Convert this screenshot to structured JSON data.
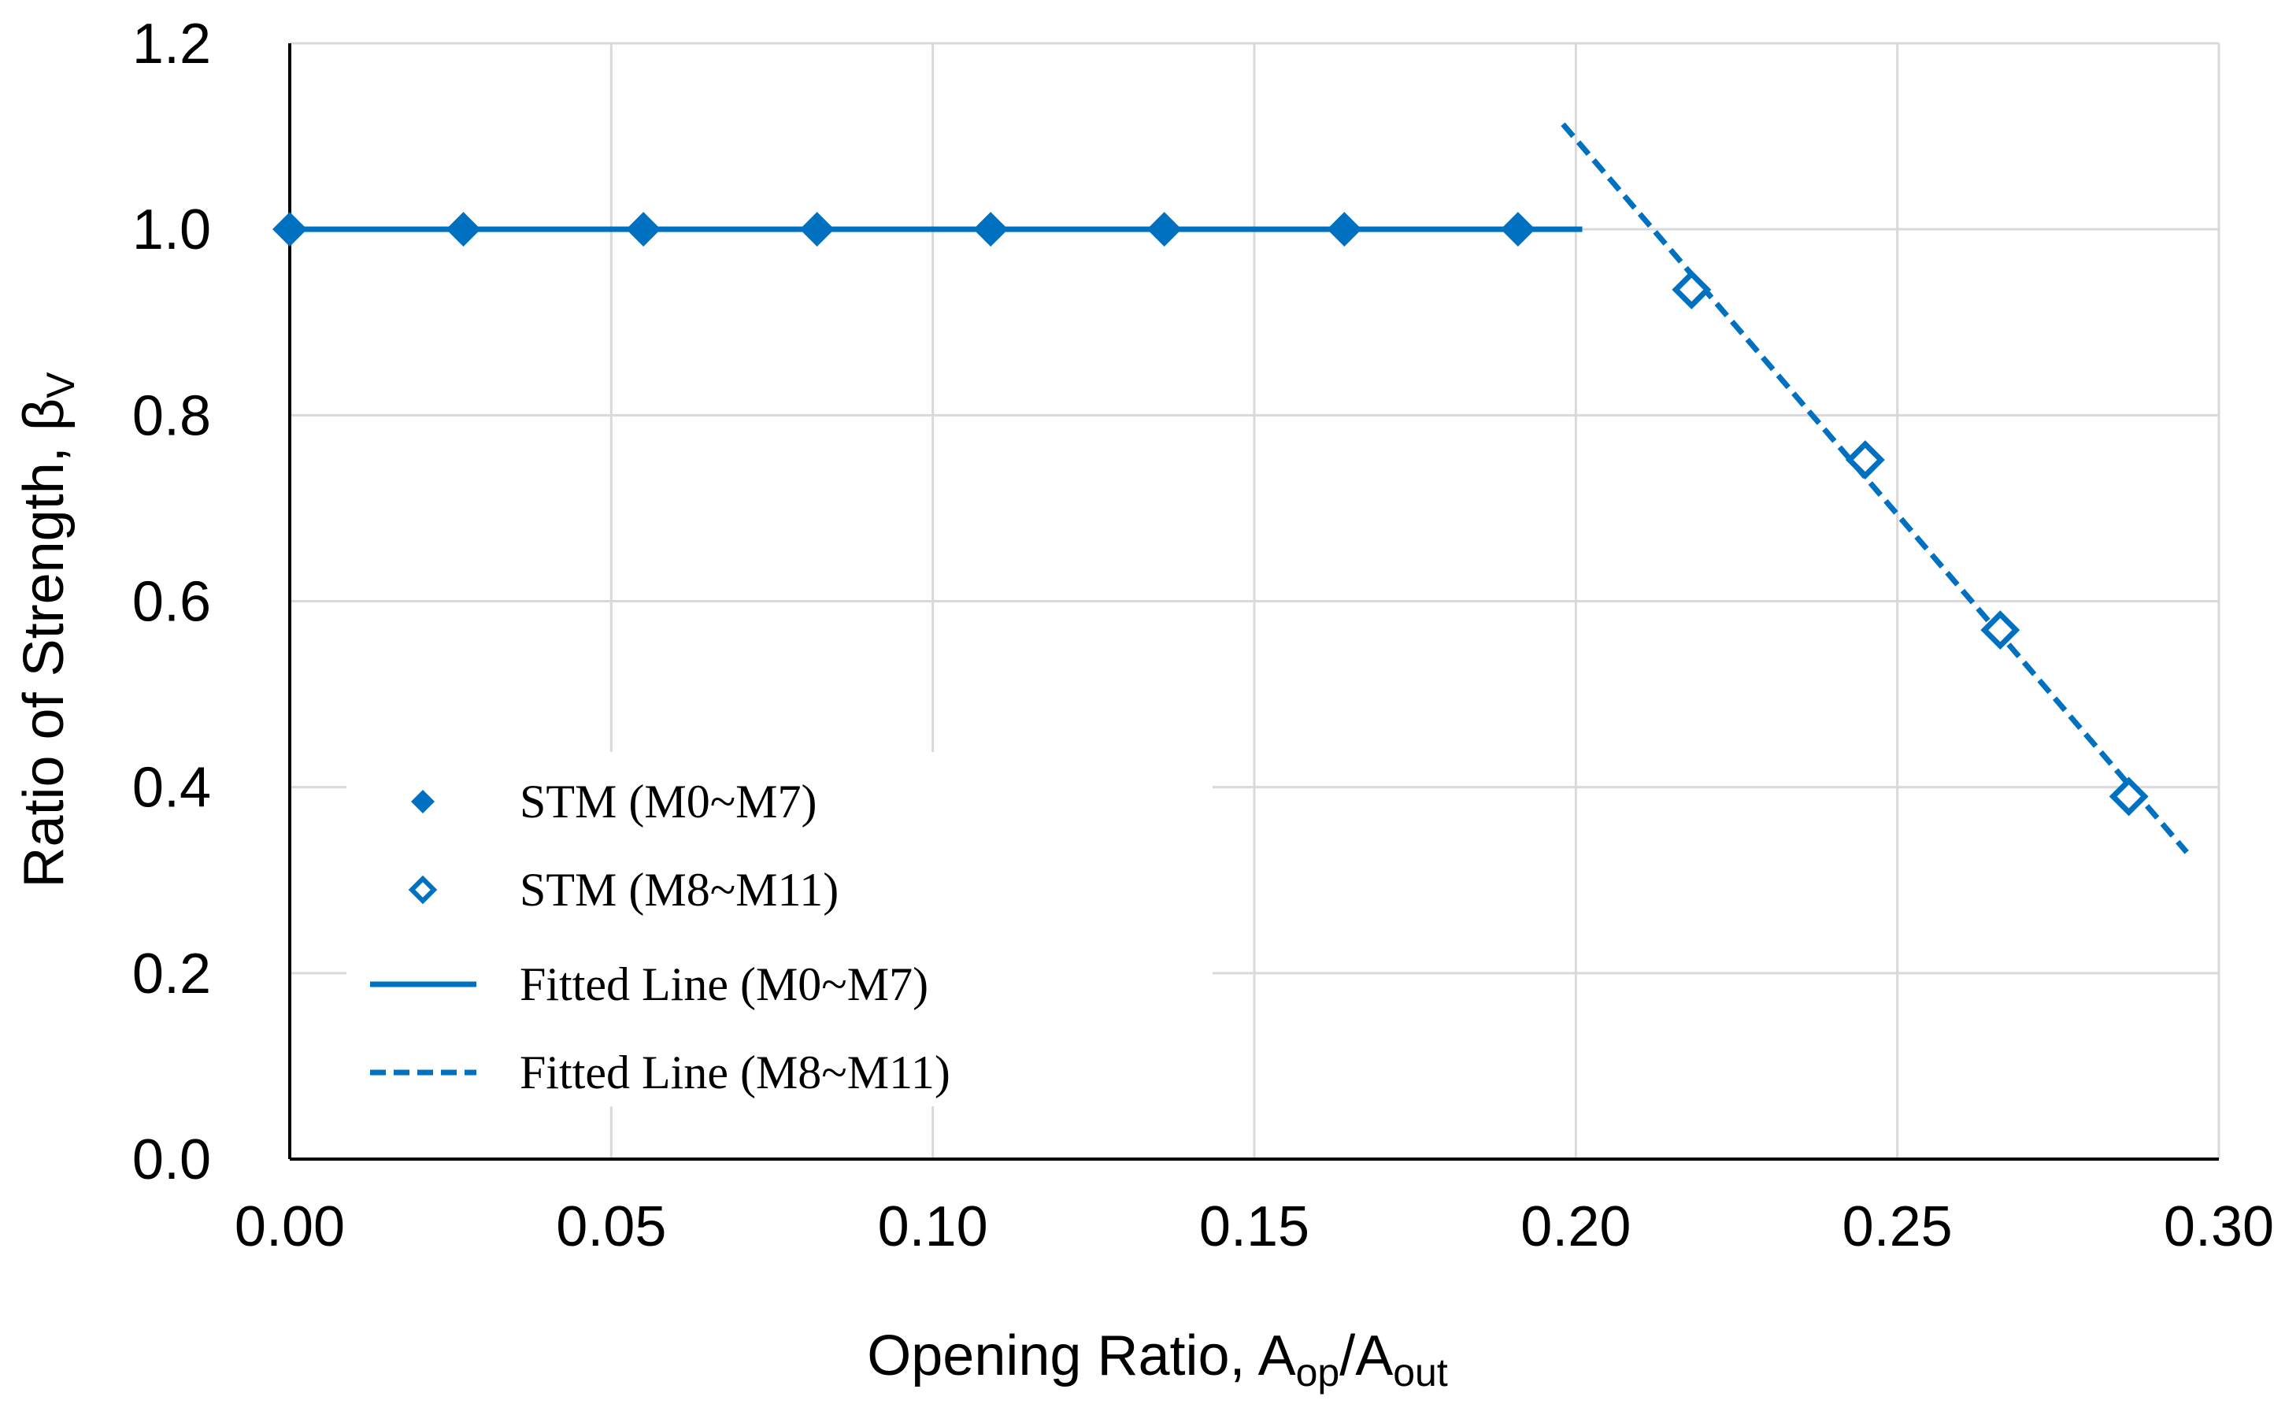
{
  "chart_data": {
    "type": "scatter",
    "title": "",
    "xlabel": {
      "main": "Opening Ratio, A",
      "sub1": "op",
      "mid": "/A",
      "sub2": "out"
    },
    "ylabel": {
      "main": "Ratio of Strength, β",
      "sub": "V"
    },
    "xlim": [
      0,
      0.3
    ],
    "ylim": [
      0,
      1.2
    ],
    "x_ticks": [
      0,
      0.05,
      0.1,
      0.15,
      0.2,
      0.25,
      0.3
    ],
    "y_ticks": [
      0,
      0.2,
      0.4,
      0.6,
      0.8,
      1.0,
      1.2
    ],
    "x_tick_labels": [
      "0.00",
      "0.05",
      "0.10",
      "0.15",
      "0.20",
      "0.25",
      "0.30"
    ],
    "y_tick_labels": [
      "0.0",
      "0.2",
      "0.4",
      "0.6",
      "0.8",
      "1.0",
      "1.2"
    ],
    "grid": true,
    "legend_position": "bottom-left",
    "color": "#0070C0",
    "series": [
      {
        "name": "STM (M0~M7)",
        "kind": "scatter",
        "marker": "filled-diamond",
        "x": [
          0.0,
          0.027,
          0.055,
          0.082,
          0.109,
          0.136,
          0.164,
          0.191
        ],
        "y": [
          1.0,
          1.0,
          1.0,
          1.0,
          1.0,
          1.0,
          1.0,
          1.0
        ]
      },
      {
        "name": "STM (M8~M11)",
        "kind": "scatter",
        "marker": "open-diamond",
        "x": [
          0.218,
          0.245,
          0.266,
          0.286
        ],
        "y": [
          0.935,
          0.752,
          0.569,
          0.39
        ]
      },
      {
        "name": "Fitted Line (M0~M7)",
        "kind": "line",
        "style": "solid",
        "x": [
          0.0,
          0.201
        ],
        "y": [
          1.0,
          1.0
        ]
      },
      {
        "name": "Fitted Line (M8~M11)",
        "kind": "line",
        "style": "dashed",
        "x": [
          0.198,
          0.295
        ],
        "y": [
          1.113,
          0.33
        ]
      }
    ]
  }
}
